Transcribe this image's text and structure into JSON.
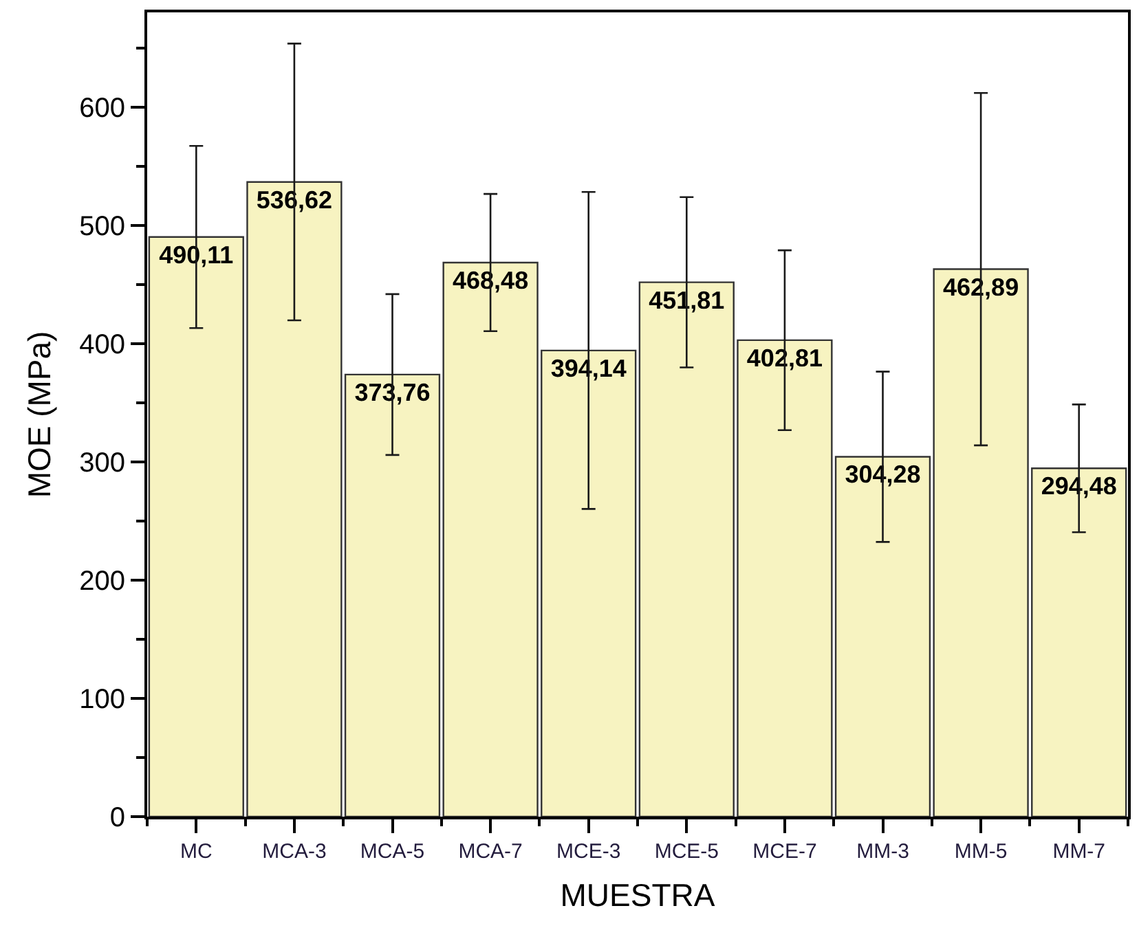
{
  "chart_data": {
    "type": "bar",
    "xlabel": "MUESTRA",
    "ylabel": "MOE (MPa)",
    "categories": [
      "MC",
      "MCA-3",
      "MCA-5",
      "MCA-7",
      "MCE-3",
      "MCE-5",
      "MCE-7",
      "MM-3",
      "MM-5",
      "MM-7"
    ],
    "values": [
      490.11,
      536.62,
      373.76,
      468.48,
      394.14,
      451.81,
      402.81,
      304.28,
      462.89,
      294.48
    ],
    "errors": [
      77,
      117,
      68,
      58,
      134,
      72,
      76,
      72,
      149,
      54
    ],
    "value_labels": [
      "490,11",
      "536,62",
      "373,76",
      "468,48",
      "394,14",
      "451,81",
      "402,81",
      "304,28",
      "462,89",
      "294,48"
    ],
    "color": "#f7f3c1",
    "ylim": [
      0,
      680
    ],
    "yticks": [
      0,
      {
        "value": 50,
        "label": null
      },
      100,
      {
        "value": 150,
        "label": null
      },
      200,
      {
        "value": 250,
        "label": null
      },
      300,
      {
        "value": 350,
        "label": null
      },
      400,
      {
        "value": 450,
        "label": null
      },
      500,
      {
        "value": 550,
        "label": null
      },
      600,
      {
        "value": 650,
        "label": null
      }
    ]
  }
}
